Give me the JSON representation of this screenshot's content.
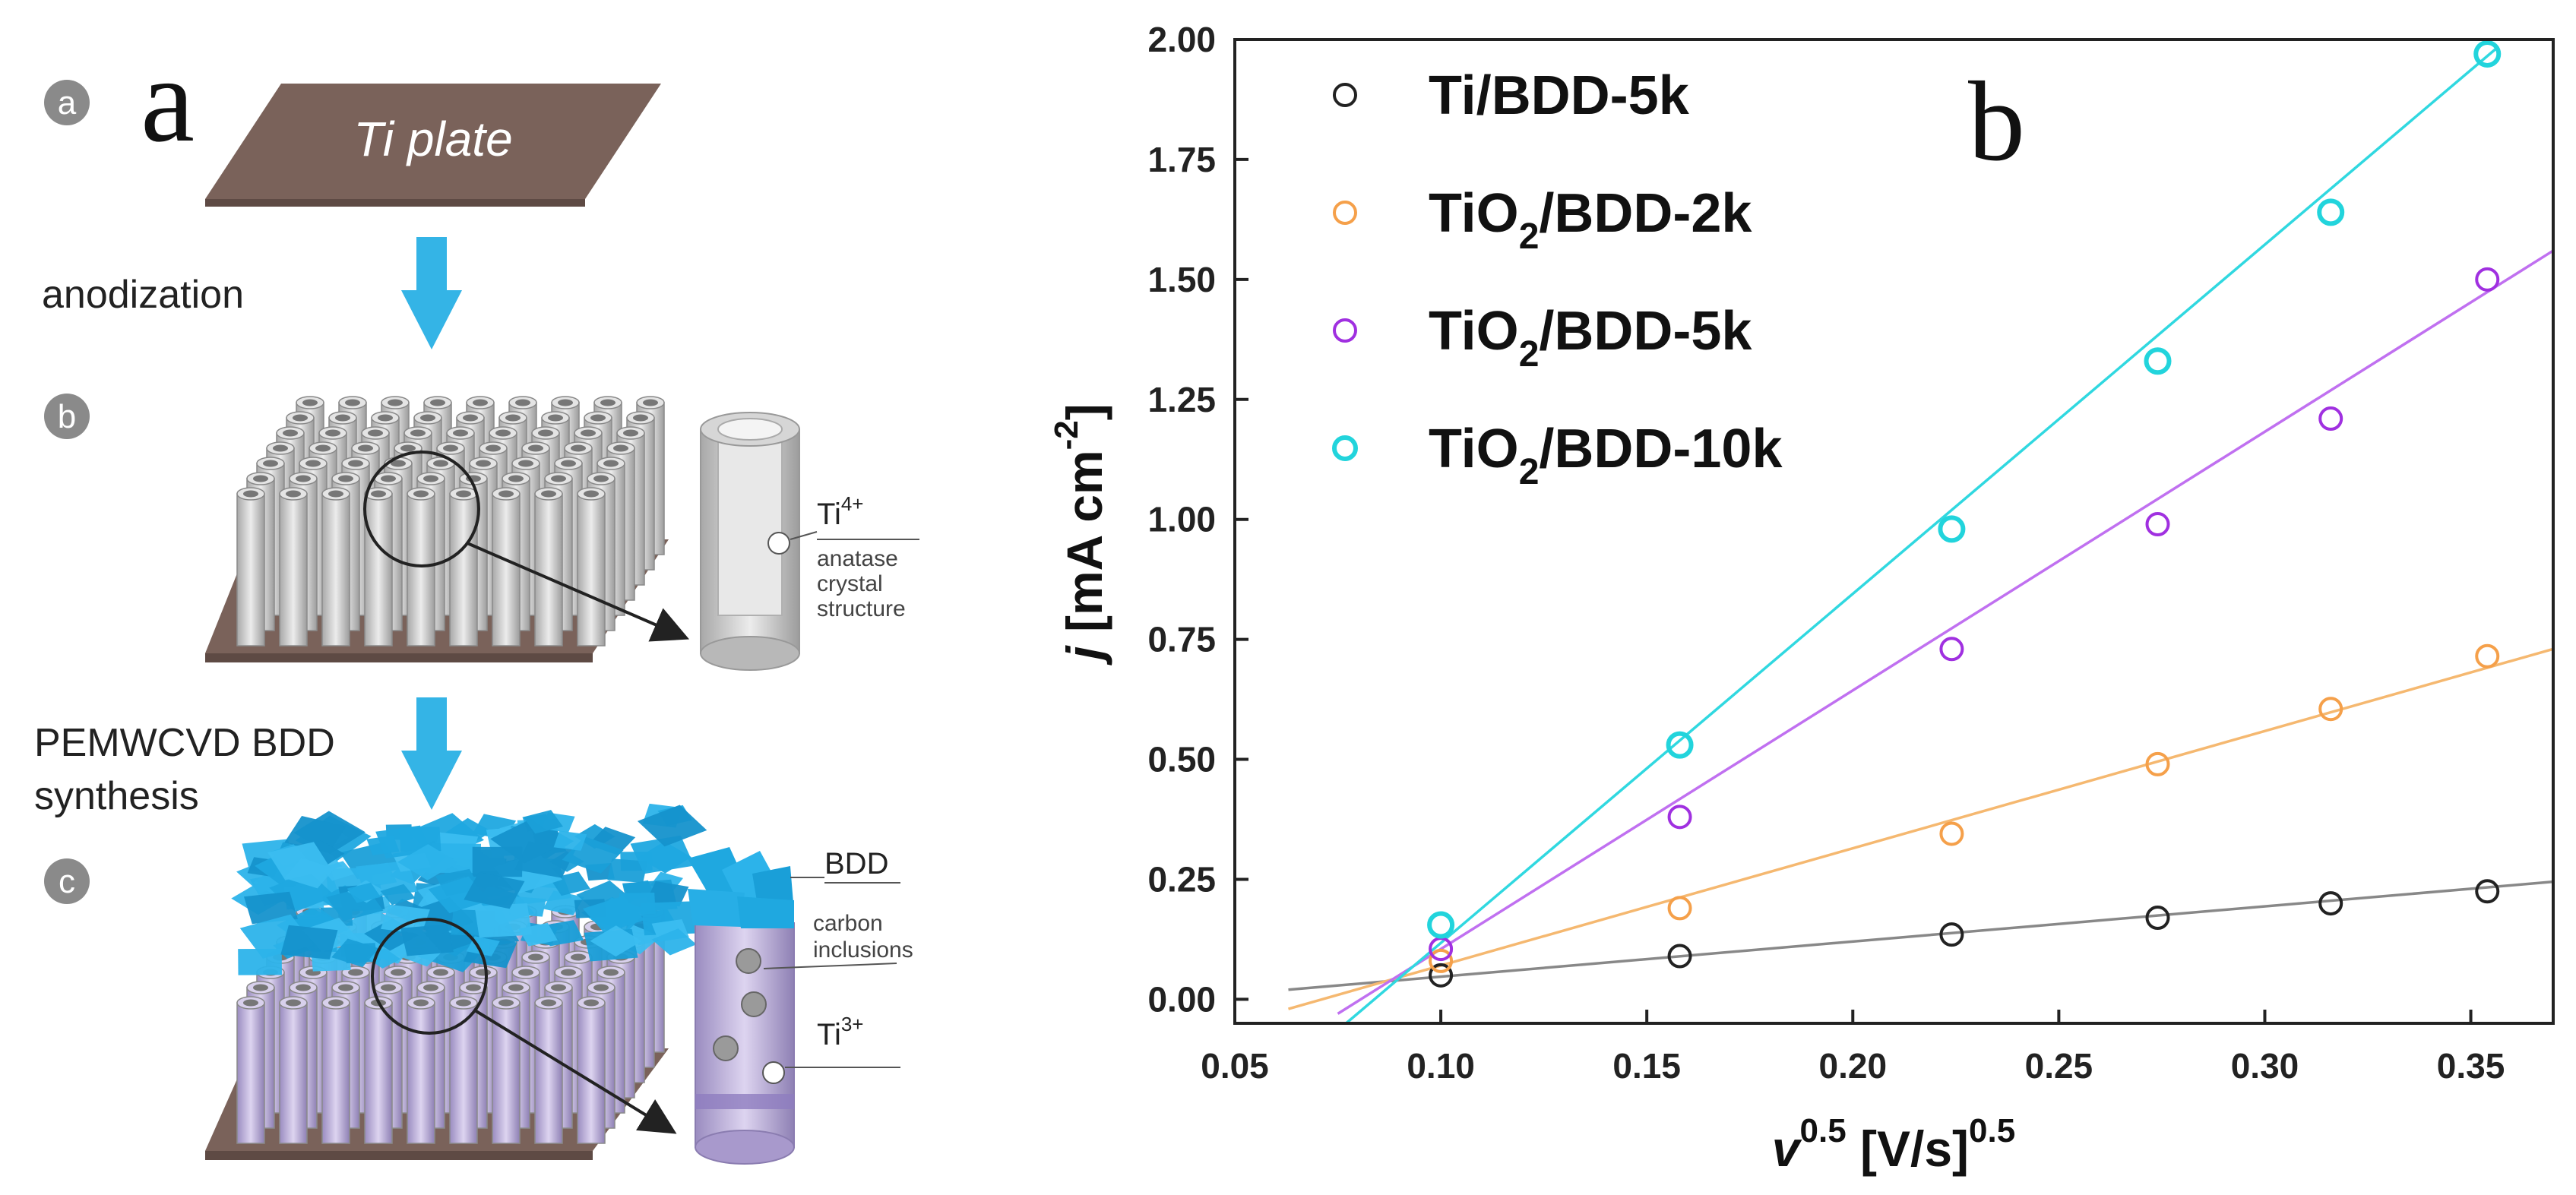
{
  "panel_a": {
    "letter": "a",
    "steps": [
      {
        "circle": "a",
        "label": "Ti plate"
      },
      {
        "circle": "b",
        "process": "anodization"
      },
      {
        "circle": "c",
        "process_line1": "PEMWCVD BDD",
        "process_line2": "synthesis"
      }
    ],
    "inset_b": {
      "ion": "Ti",
      "ion_charge": "4+",
      "desc_line1": "anatase",
      "desc_line2": "crystal",
      "desc_line3": "structure"
    },
    "inset_c": {
      "coating": "BDD",
      "incl_line1": "carbon",
      "incl_line2": "inclusions",
      "ion": "Ti",
      "ion_charge": "3+"
    },
    "colors": {
      "substrate": "#7a625a",
      "tube": "#c9c9c9",
      "tube_c": "#b7a9d4",
      "bdd": "#1fa8e0",
      "arrow": "#34b4e6",
      "circle": "#8a8a8a"
    }
  },
  "chart_data": {
    "type": "scatter",
    "panel_letter": "b",
    "xlabel": {
      "base": "v",
      "sup1": "0.5",
      "mid": " [V/s]",
      "sup2": "0.5"
    },
    "ylabel": {
      "base": "j",
      "mid": " [mA cm",
      "sup": "-2",
      "end": "]"
    },
    "xlim": [
      0.05,
      0.37
    ],
    "ylim": [
      -0.05,
      2.0
    ],
    "xticks": [
      "0.05",
      "0.10",
      "0.15",
      "0.20",
      "0.25",
      "0.30",
      "0.35"
    ],
    "yticks": [
      "0.00",
      "0.25",
      "0.50",
      "0.75",
      "1.00",
      "1.25",
      "1.50",
      "1.75",
      "2.00"
    ],
    "legend_position": "top-left",
    "series": [
      {
        "name": "Ti/BDD-5k",
        "name_parts": [
          "Ti/BDD-5k"
        ],
        "color": "#222222",
        "line_color": "#888888",
        "x": [
          0.1,
          0.158,
          0.224,
          0.274,
          0.316,
          0.354
        ],
        "y": [
          0.05,
          0.09,
          0.135,
          0.17,
          0.2,
          0.225
        ],
        "fit": {
          "x": [
            0.063,
            0.37
          ],
          "y": [
            0.02,
            0.245
          ]
        }
      },
      {
        "name": "TiO2/BDD-2k",
        "name_parts": [
          "TiO",
          "2",
          "/BDD-2k"
        ],
        "color": "#f5a04a",
        "line_color": "#f5b870",
        "x": [
          0.1,
          0.158,
          0.224,
          0.274,
          0.316,
          0.354
        ],
        "y": [
          0.08,
          0.19,
          0.345,
          0.49,
          0.605,
          0.715
        ],
        "fit": {
          "x": [
            0.063,
            0.37
          ],
          "y": [
            -0.02,
            0.73
          ]
        }
      },
      {
        "name": "TiO2/BDD-5k",
        "name_parts": [
          "TiO",
          "2",
          "/BDD-5k"
        ],
        "color": "#a030e0",
        "line_color": "#c070f0",
        "x": [
          0.1,
          0.158,
          0.224,
          0.274,
          0.316,
          0.354
        ],
        "y": [
          0.105,
          0.38,
          0.73,
          0.99,
          1.21,
          1.5
        ],
        "fit": {
          "x": [
            0.075,
            0.37
          ],
          "y": [
            -0.03,
            1.56
          ]
        }
      },
      {
        "name": "TiO2/BDD-10k",
        "name_parts": [
          "TiO",
          "2",
          "/BDD-10k"
        ],
        "color": "#22d4dc",
        "line_color": "#30d8e0",
        "x": [
          0.1,
          0.158,
          0.224,
          0.274,
          0.316,
          0.354
        ],
        "y": [
          0.155,
          0.53,
          0.98,
          1.33,
          1.64,
          1.97
        ],
        "fit": {
          "x": [
            0.077,
            0.356
          ],
          "y": [
            -0.05,
            1.98
          ]
        }
      }
    ]
  }
}
